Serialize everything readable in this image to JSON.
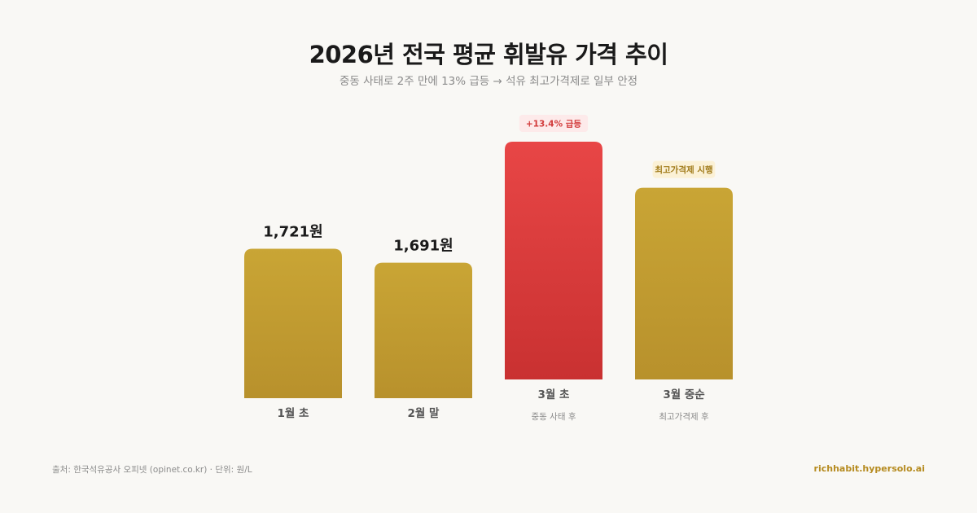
{
  "header": {
    "title": "2026년 전국 평균 휘발유 가격 추이",
    "subtitle": "중동 사태로 2주 만에 13% 급등 → 석유 최고가격제로 일부 안정"
  },
  "footer": {
    "source": "출처: 한국석유공사 오피넷 (opinet.co.kr) · 단위: 원/L",
    "brand": "richhabit.hypersolo.ai"
  },
  "colors": {
    "gold_top": "#c9a535",
    "gold_bottom": "#b8912c",
    "red_top": "#e84646",
    "red_bottom": "#c93131",
    "badge_red_bg": "#fdeaea",
    "badge_red_text": "#d23a3a",
    "badge_gold_bg": "#fbf1d6",
    "badge_gold_text": "#a07a18"
  },
  "chart_data": {
    "type": "bar",
    "title": "2026년 전국 평균 휘발유 가격 추이",
    "categories": [
      "1월 초",
      "2월 말",
      "3월 초",
      "3월 중순"
    ],
    "category_sublabels": [
      "",
      "",
      "중동 사태 후",
      "최고가격제 후"
    ],
    "values": [
      1721,
      1691,
      1951,
      1852
    ],
    "value_labels": [
      "1,721원",
      "1,691원",
      "",
      ""
    ],
    "badges": [
      "",
      "",
      "+13.4% 급등",
      "최고가격제 시행"
    ],
    "highlight": [
      false,
      false,
      true,
      false
    ],
    "unit": "원/L",
    "ylim": [
      1400,
      2000
    ],
    "grid": false,
    "legend": "none"
  }
}
